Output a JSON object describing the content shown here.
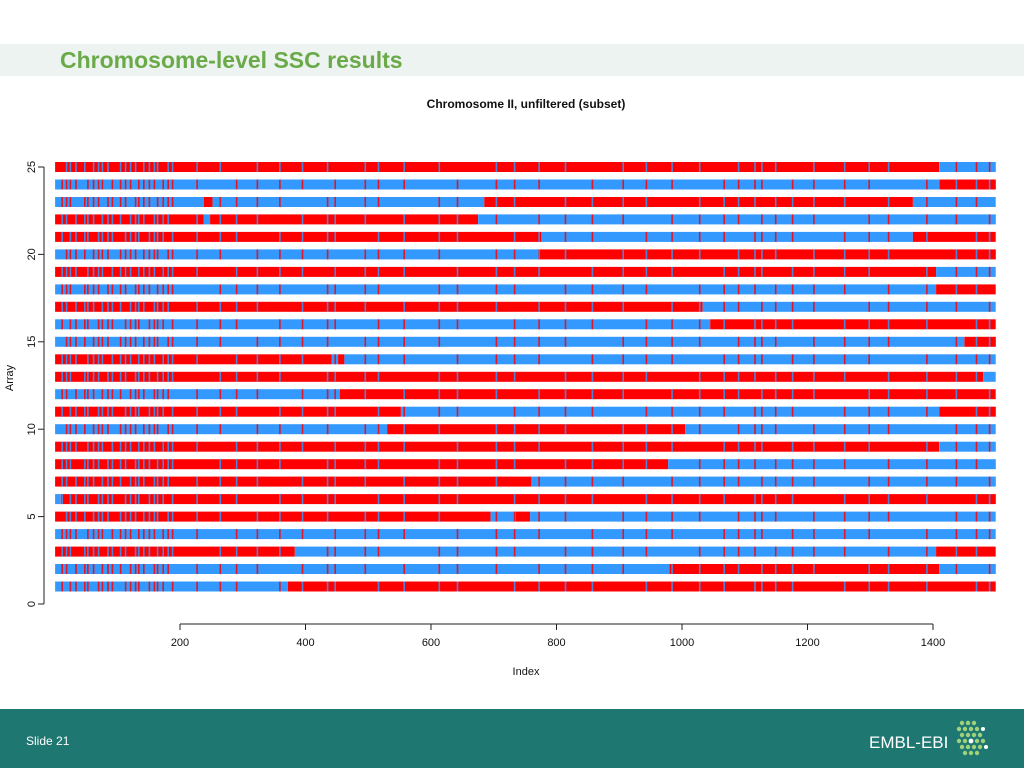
{
  "slide": {
    "title": "Chromosome-level SSC results",
    "slide_number": "Slide 21",
    "brand": "EMBL-EBI",
    "colors": {
      "accent": "#6aaa48",
      "footer": "#1f7771",
      "state_red": "#ff0000",
      "state_blue": "#3399ff"
    }
  },
  "chart_data": {
    "type": "heatmap",
    "title": "Chromosome II, unfiltered (subset)",
    "xlabel": "Index",
    "ylabel": "Array",
    "xlim": [
      1,
      1500
    ],
    "ylim": [
      0,
      25
    ],
    "xticks": [
      200,
      400,
      600,
      800,
      1000,
      1200,
      1400
    ],
    "yticks": [
      0,
      5,
      10,
      15,
      20,
      25
    ],
    "states": {
      "red": "#ff0000",
      "blue": "#3399ff"
    },
    "rows": [
      {
        "array": 1,
        "segments": [
          [
            "blue",
            1,
            372
          ],
          [
            "red",
            372,
            1500
          ]
        ]
      },
      {
        "array": 2,
        "segments": [
          [
            "blue",
            1,
            980
          ],
          [
            "red",
            980,
            1410
          ],
          [
            "blue",
            1410,
            1500
          ]
        ]
      },
      {
        "array": 3,
        "segments": [
          [
            "red",
            1,
            383
          ],
          [
            "blue",
            383,
            1405
          ],
          [
            "red",
            1405,
            1500
          ]
        ]
      },
      {
        "array": 4,
        "segments": [
          [
            "blue",
            1,
            1500
          ]
        ]
      },
      {
        "array": 5,
        "segments": [
          [
            "red",
            1,
            695
          ],
          [
            "blue",
            695,
            735
          ],
          [
            "red",
            735,
            758
          ],
          [
            "blue",
            758,
            1500
          ]
        ]
      },
      {
        "array": 6,
        "segments": [
          [
            "blue",
            1,
            10
          ],
          [
            "red",
            10,
            1500
          ]
        ]
      },
      {
        "array": 7,
        "segments": [
          [
            "red",
            1,
            760
          ],
          [
            "blue",
            760,
            1500
          ]
        ]
      },
      {
        "array": 8,
        "segments": [
          [
            "red",
            1,
            978
          ],
          [
            "blue",
            978,
            1500
          ]
        ]
      },
      {
        "array": 9,
        "segments": [
          [
            "red",
            1,
            1410
          ],
          [
            "blue",
            1410,
            1500
          ]
        ]
      },
      {
        "array": 10,
        "segments": [
          [
            "blue",
            1,
            530
          ],
          [
            "red",
            530,
            1005
          ],
          [
            "blue",
            1005,
            1500
          ]
        ]
      },
      {
        "array": 11,
        "segments": [
          [
            "red",
            1,
            552
          ],
          [
            "blue",
            552,
            1410
          ],
          [
            "red",
            1410,
            1500
          ]
        ]
      },
      {
        "array": 12,
        "segments": [
          [
            "blue",
            1,
            455
          ],
          [
            "red",
            455,
            1500
          ]
        ]
      },
      {
        "array": 13,
        "segments": [
          [
            "red",
            1,
            1480
          ],
          [
            "blue",
            1480,
            1500
          ]
        ]
      },
      {
        "array": 14,
        "segments": [
          [
            "red",
            1,
            442
          ],
          [
            "blue",
            442,
            452
          ],
          [
            "red",
            452,
            462
          ],
          [
            "blue",
            462,
            1500
          ]
        ]
      },
      {
        "array": 15,
        "segments": [
          [
            "blue",
            1,
            1450
          ],
          [
            "red",
            1450,
            1500
          ]
        ]
      },
      {
        "array": 16,
        "segments": [
          [
            "blue",
            1,
            1045
          ],
          [
            "red",
            1045,
            1500
          ]
        ]
      },
      {
        "array": 17,
        "segments": [
          [
            "red",
            1,
            1033
          ],
          [
            "blue",
            1033,
            1500
          ]
        ]
      },
      {
        "array": 18,
        "segments": [
          [
            "blue",
            1,
            1405
          ],
          [
            "red",
            1405,
            1500
          ]
        ]
      },
      {
        "array": 19,
        "segments": [
          [
            "red",
            1,
            1405
          ],
          [
            "blue",
            1405,
            1500
          ]
        ]
      },
      {
        "array": 20,
        "segments": [
          [
            "blue",
            1,
            770
          ],
          [
            "red",
            770,
            1500
          ]
        ]
      },
      {
        "array": 21,
        "segments": [
          [
            "red",
            1,
            776
          ],
          [
            "blue",
            776,
            1368
          ],
          [
            "red",
            1368,
            1500
          ]
        ]
      },
      {
        "array": 22,
        "segments": [
          [
            "red",
            1,
            238
          ],
          [
            "blue",
            238,
            248
          ],
          [
            "red",
            248,
            675
          ],
          [
            "blue",
            675,
            1500
          ]
        ]
      },
      {
        "array": 23,
        "segments": [
          [
            "blue",
            1,
            238
          ],
          [
            "red",
            238,
            252
          ],
          [
            "blue",
            252,
            685
          ],
          [
            "red",
            685,
            1368
          ],
          [
            "blue",
            1368,
            1500
          ]
        ]
      },
      {
        "array": 24,
        "segments": [
          [
            "blue",
            1,
            1410
          ],
          [
            "red",
            1410,
            1500
          ]
        ]
      },
      {
        "array": 25,
        "segments": [
          [
            "red",
            1,
            1410
          ],
          [
            "blue",
            1410,
            1500
          ]
        ]
      }
    ],
    "flicker_positions": [
      11,
      18,
      24,
      33,
      47,
      52,
      61,
      69,
      75,
      84,
      91,
      104,
      112,
      120,
      128,
      133,
      141,
      150,
      158,
      163,
      172,
      180,
      187,
      226,
      263,
      289,
      322,
      358,
      394,
      434,
      446,
      494,
      515,
      556,
      612,
      641,
      703,
      732,
      771,
      813,
      856,
      905,
      942,
      983,
      1027,
      1066,
      1089,
      1115,
      1126,
      1148,
      1175,
      1209,
      1258,
      1297,
      1328,
      1389,
      1436,
      1468,
      1489
    ]
  }
}
